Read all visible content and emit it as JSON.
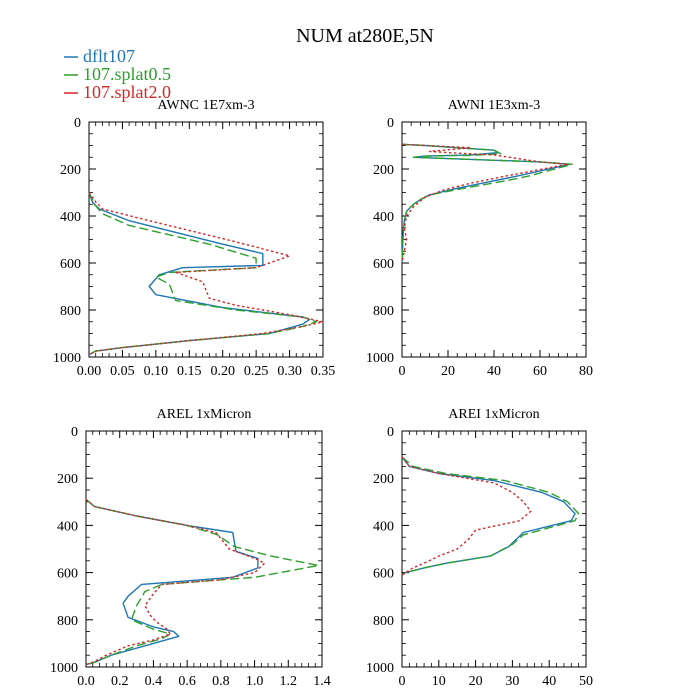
{
  "title": "NUM at280E,5N",
  "legend": [
    {
      "name": "dflt107",
      "color": "#1f77b4",
      "dash": "solid"
    },
    {
      "name": "107.splat0.5",
      "color": "#2ca02c",
      "dash": "longdash"
    },
    {
      "name": "107.splat2.0",
      "color": "#d62728",
      "dash": "dotted"
    }
  ],
  "chart_data": [
    {
      "type": "line",
      "title": "AWNC  1E7xm-3",
      "xlim": [
        0,
        0.35
      ],
      "ylim": [
        1000,
        0
      ],
      "xticks": [
        0,
        0.05,
        0.1,
        0.15,
        0.2,
        0.25,
        0.3,
        0.35
      ],
      "xticklabels": [
        "0.00",
        "0.05",
        "0.10",
        "0.15",
        "0.20",
        "0.25",
        "0.30",
        "0.35"
      ],
      "yticks": [
        0,
        200,
        400,
        600,
        800,
        1000
      ],
      "yticklabels": [
        "0",
        "200",
        "400",
        "600",
        "800",
        "1000"
      ],
      "series": [
        {
          "name": "dflt107",
          "points": [
            [
              0,
              300
            ],
            [
              0.005,
              340
            ],
            [
              0.015,
              370
            ],
            [
              0.06,
              420
            ],
            [
              0.2,
              520
            ],
            [
              0.26,
              560
            ],
            [
              0.26,
              610
            ],
            [
              0.14,
              620
            ],
            [
              0.105,
              650
            ],
            [
              0.09,
              700
            ],
            [
              0.1,
              735
            ],
            [
              0.2,
              790
            ],
            [
              0.32,
              830
            ],
            [
              0.33,
              840
            ],
            [
              0.32,
              860
            ],
            [
              0.27,
              900
            ],
            [
              0.15,
              930
            ],
            [
              0.05,
              960
            ],
            [
              0.01,
              975
            ],
            [
              0,
              990
            ]
          ]
        },
        {
          "name": "107.splat0.5",
          "points": [
            [
              0,
              300
            ],
            [
              0.008,
              350
            ],
            [
              0.02,
              390
            ],
            [
              0.06,
              440
            ],
            [
              0.18,
              520
            ],
            [
              0.25,
              580
            ],
            [
              0.25,
              620
            ],
            [
              0.12,
              640
            ],
            [
              0.1,
              660
            ],
            [
              0.12,
              690
            ],
            [
              0.13,
              760
            ],
            [
              0.22,
              800
            ],
            [
              0.32,
              830
            ],
            [
              0.34,
              850
            ],
            [
              0.32,
              870
            ],
            [
              0.27,
              900
            ],
            [
              0.15,
              930
            ],
            [
              0.05,
              960
            ],
            [
              0.01,
              975
            ],
            [
              0,
              990
            ]
          ]
        },
        {
          "name": "107.splat2.0",
          "points": [
            [
              0,
              300
            ],
            [
              0.01,
              340
            ],
            [
              0.02,
              370
            ],
            [
              0.09,
              420
            ],
            [
              0.22,
              510
            ],
            [
              0.3,
              570
            ],
            [
              0.25,
              620
            ],
            [
              0.13,
              640
            ],
            [
              0.17,
              680
            ],
            [
              0.18,
              750
            ],
            [
              0.22,
              780
            ],
            [
              0.3,
              820
            ],
            [
              0.35,
              850
            ],
            [
              0.32,
              870
            ],
            [
              0.26,
              900
            ],
            [
              0.15,
              930
            ],
            [
              0.05,
              960
            ],
            [
              0.01,
              975
            ],
            [
              0,
              990
            ]
          ]
        }
      ]
    },
    {
      "type": "line",
      "title": "AWNI  1E3xm-3",
      "xlim": [
        0,
        80
      ],
      "ylim": [
        1000,
        0
      ],
      "xticks": [
        0,
        20,
        40,
        60,
        80
      ],
      "xticklabels": [
        "0",
        "20",
        "40",
        "60",
        "80"
      ],
      "yticks": [
        0,
        200,
        400,
        600,
        800,
        1000
      ],
      "yticklabels": [
        "0",
        "200",
        "400",
        "600",
        "800",
        "1000"
      ],
      "series": [
        {
          "name": "dflt107",
          "points": [
            [
              0,
              95
            ],
            [
              10,
              100
            ],
            [
              40,
              120
            ],
            [
              42,
              130
            ],
            [
              30,
              140
            ],
            [
              10,
              145
            ],
            [
              5,
              150
            ],
            [
              60,
              170
            ],
            [
              73,
              180
            ],
            [
              50,
              230
            ],
            [
              40,
              250
            ],
            [
              25,
              280
            ],
            [
              12,
              310
            ],
            [
              8,
              330
            ],
            [
              5,
              350
            ],
            [
              2,
              380
            ],
            [
              1,
              420
            ],
            [
              0.5,
              480
            ],
            [
              0,
              600
            ]
          ]
        },
        {
          "name": "107.splat0.5",
          "points": [
            [
              0,
              95
            ],
            [
              10,
              100
            ],
            [
              40,
              120
            ],
            [
              43,
              135
            ],
            [
              30,
              142
            ],
            [
              10,
              145
            ],
            [
              5,
              150
            ],
            [
              60,
              170
            ],
            [
              74,
              180
            ],
            [
              55,
              230
            ],
            [
              45,
              250
            ],
            [
              28,
              280
            ],
            [
              12,
              310
            ],
            [
              8,
              330
            ],
            [
              5,
              350
            ],
            [
              2,
              380
            ],
            [
              1,
              420
            ],
            [
              0.5,
              480
            ],
            [
              0,
              600
            ]
          ]
        },
        {
          "name": "107.splat2.0",
          "points": [
            [
              0,
              95
            ],
            [
              10,
              100
            ],
            [
              30,
              110
            ],
            [
              12,
              125
            ],
            [
              20,
              130
            ],
            [
              40,
              140
            ],
            [
              60,
              170
            ],
            [
              72,
              180
            ],
            [
              45,
              230
            ],
            [
              30,
              260
            ],
            [
              18,
              290
            ],
            [
              10,
              320
            ],
            [
              5,
              360
            ],
            [
              2,
              400
            ],
            [
              1,
              450
            ],
            [
              2,
              500
            ],
            [
              0,
              600
            ]
          ]
        }
      ]
    },
    {
      "type": "line",
      "title": "AREL  1xMicron",
      "xlim": [
        0,
        1.4
      ],
      "ylim": [
        1000,
        0
      ],
      "xticks": [
        0,
        0.2,
        0.4,
        0.6,
        0.8,
        1.0,
        1.2,
        1.4
      ],
      "xticklabels": [
        "0.0",
        "0.2",
        "0.4",
        "0.6",
        "0.8",
        "1.0",
        "1.2",
        "1.4"
      ],
      "yticks": [
        0,
        200,
        400,
        600,
        800,
        1000
      ],
      "yticklabels": [
        "0",
        "200",
        "400",
        "600",
        "800",
        "1000"
      ],
      "series": [
        {
          "name": "dflt107",
          "points": [
            [
              0,
              290
            ],
            [
              0.05,
              320
            ],
            [
              0.3,
              360
            ],
            [
              0.6,
              400
            ],
            [
              0.87,
              430
            ],
            [
              0.89,
              510
            ],
            [
              1.02,
              540
            ],
            [
              1.02,
              580
            ],
            [
              0.87,
              620
            ],
            [
              0.33,
              650
            ],
            [
              0.25,
              700
            ],
            [
              0.22,
              730
            ],
            [
              0.25,
              790
            ],
            [
              0.4,
              830
            ],
            [
              0.52,
              850
            ],
            [
              0.55,
              870
            ],
            [
              0.5,
              880
            ],
            [
              0.35,
              910
            ],
            [
              0.15,
              950
            ],
            [
              0.05,
              980
            ],
            [
              0,
              990
            ]
          ]
        },
        {
          "name": "107.splat0.5",
          "points": [
            [
              0,
              290
            ],
            [
              0.05,
              320
            ],
            [
              0.3,
              360
            ],
            [
              0.6,
              400
            ],
            [
              0.78,
              440
            ],
            [
              0.88,
              490
            ],
            [
              1.1,
              530
            ],
            [
              1.38,
              570
            ],
            [
              1.0,
              620
            ],
            [
              0.45,
              650
            ],
            [
              0.35,
              680
            ],
            [
              0.3,
              740
            ],
            [
              0.27,
              800
            ],
            [
              0.4,
              840
            ],
            [
              0.5,
              860
            ],
            [
              0.45,
              880
            ],
            [
              0.3,
              910
            ],
            [
              0.15,
              950
            ],
            [
              0.05,
              980
            ],
            [
              0,
              990
            ]
          ]
        },
        {
          "name": "107.splat2.0",
          "points": [
            [
              0,
              290
            ],
            [
              0.05,
              320
            ],
            [
              0.3,
              360
            ],
            [
              0.6,
              400
            ],
            [
              0.77,
              430
            ],
            [
              0.85,
              500
            ],
            [
              1.0,
              540
            ],
            [
              1.06,
              560
            ],
            [
              1.0,
              600
            ],
            [
              0.8,
              630
            ],
            [
              0.45,
              650
            ],
            [
              0.4,
              690
            ],
            [
              0.35,
              740
            ],
            [
              0.38,
              780
            ],
            [
              0.42,
              810
            ],
            [
              0.48,
              840
            ],
            [
              0.5,
              860
            ],
            [
              0.4,
              885
            ],
            [
              0.25,
              910
            ],
            [
              0.12,
              950
            ],
            [
              0.04,
              980
            ],
            [
              0,
              990
            ]
          ]
        }
      ]
    },
    {
      "type": "line",
      "title": "AREI  1xMicron",
      "xlim": [
        0,
        50
      ],
      "ylim": [
        1000,
        0
      ],
      "xticks": [
        0,
        10,
        20,
        30,
        40,
        50
      ],
      "xticklabels": [
        "0",
        "10",
        "20",
        "30",
        "40",
        "50"
      ],
      "yticks": [
        0,
        200,
        400,
        600,
        800,
        1000
      ],
      "yticklabels": [
        "0",
        "200",
        "400",
        "600",
        "800",
        "1000"
      ],
      "series": [
        {
          "name": "dflt107",
          "points": [
            [
              0,
              110
            ],
            [
              2,
              150
            ],
            [
              10,
              180
            ],
            [
              25,
              210
            ],
            [
              38,
              260
            ],
            [
              44,
              300
            ],
            [
              47,
              350
            ],
            [
              46,
              380
            ],
            [
              33,
              430
            ],
            [
              29,
              490
            ],
            [
              24,
              530
            ],
            [
              12,
              560
            ],
            [
              6,
              580
            ],
            [
              1,
              600
            ],
            [
              0,
              610
            ]
          ]
        },
        {
          "name": "107.splat0.5",
          "points": [
            [
              0,
              110
            ],
            [
              3,
              150
            ],
            [
              12,
              180
            ],
            [
              28,
              210
            ],
            [
              40,
              260
            ],
            [
              45,
              300
            ],
            [
              48,
              350
            ],
            [
              47,
              380
            ],
            [
              33,
              440
            ],
            [
              30,
              480
            ],
            [
              24,
              530
            ],
            [
              12,
              560
            ],
            [
              6,
              580
            ],
            [
              1,
              600
            ],
            [
              0,
              610
            ]
          ]
        },
        {
          "name": "107.splat2.0",
          "points": [
            [
              0,
              110
            ],
            [
              2,
              150
            ],
            [
              10,
              180
            ],
            [
              25,
              220
            ],
            [
              30,
              260
            ],
            [
              33,
              300
            ],
            [
              35,
              340
            ],
            [
              32,
              380
            ],
            [
              20,
              420
            ],
            [
              18,
              460
            ],
            [
              15,
              500
            ],
            [
              10,
              530
            ],
            [
              6,
              560
            ],
            [
              3,
              580
            ],
            [
              1,
              600
            ],
            [
              0,
              610
            ]
          ]
        }
      ]
    }
  ]
}
